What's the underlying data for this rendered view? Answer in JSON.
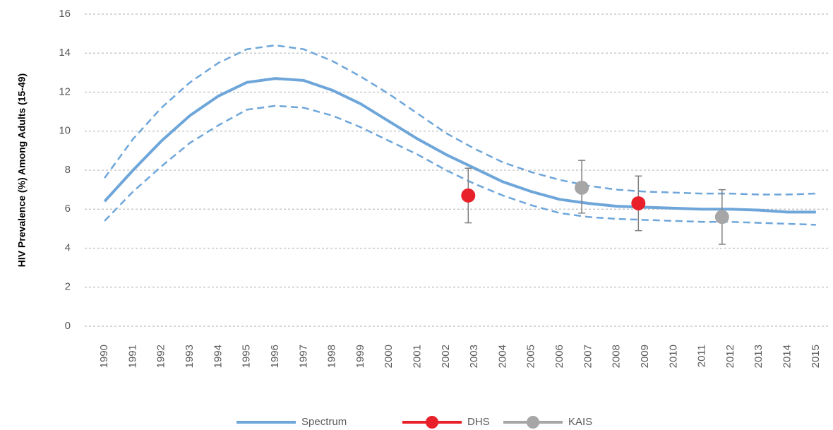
{
  "chart_data": {
    "type": "line",
    "y_label": "HIV Prevalence (%) Among Adults (15-49)",
    "categories": [
      "1990",
      "1991",
      "1992",
      "1993",
      "1994",
      "1995",
      "1996",
      "1997",
      "1998",
      "1999",
      "2000",
      "2001",
      "2002",
      "2003",
      "2004",
      "2005",
      "2006",
      "2007",
      "2008",
      "2009",
      "2010",
      "2011",
      "2012",
      "2013",
      "2014",
      "2015"
    ],
    "ylim": [
      0,
      16
    ],
    "yticks": [
      0,
      2,
      4,
      6,
      8,
      10,
      12,
      14,
      16
    ],
    "grid": true,
    "series": [
      {
        "name": "Spectrum",
        "color": "#6ea6da",
        "values": [
          6.4,
          8.0,
          9.5,
          10.8,
          11.8,
          12.5,
          12.7,
          12.6,
          12.1,
          11.4,
          10.5,
          9.6,
          8.8,
          8.1,
          7.4,
          6.9,
          6.5,
          6.3,
          6.15,
          6.1,
          6.05,
          6.0,
          6.0,
          5.95,
          5.85,
          5.85
        ],
        "upper": [
          7.6,
          9.6,
          11.2,
          12.5,
          13.5,
          14.2,
          14.4,
          14.2,
          13.6,
          12.8,
          11.9,
          10.9,
          9.9,
          9.1,
          8.4,
          7.9,
          7.5,
          7.2,
          7.0,
          6.9,
          6.85,
          6.8,
          6.8,
          6.75,
          6.75,
          6.8
        ],
        "lower": [
          5.4,
          6.9,
          8.2,
          9.4,
          10.3,
          11.1,
          11.3,
          11.2,
          10.8,
          10.2,
          9.5,
          8.8,
          8.0,
          7.3,
          6.7,
          6.2,
          5.8,
          5.6,
          5.5,
          5.45,
          5.4,
          5.35,
          5.35,
          5.3,
          5.25,
          5.2
        ]
      },
      {
        "name": "DHS",
        "color": "#e8202a",
        "x": [
          2002.78,
          2008.76
        ],
        "values": [
          6.7,
          6.3
        ],
        "lower": [
          5.3,
          4.9
        ],
        "upper": [
          8.1,
          7.7
        ]
      },
      {
        "name": "KAIS",
        "color": "#a6a6a6",
        "x": [
          2006.77,
          2011.7
        ],
        "values": [
          7.1,
          5.6
        ],
        "lower": [
          5.8,
          4.2
        ],
        "upper": [
          8.5,
          7.0
        ]
      }
    ]
  }
}
